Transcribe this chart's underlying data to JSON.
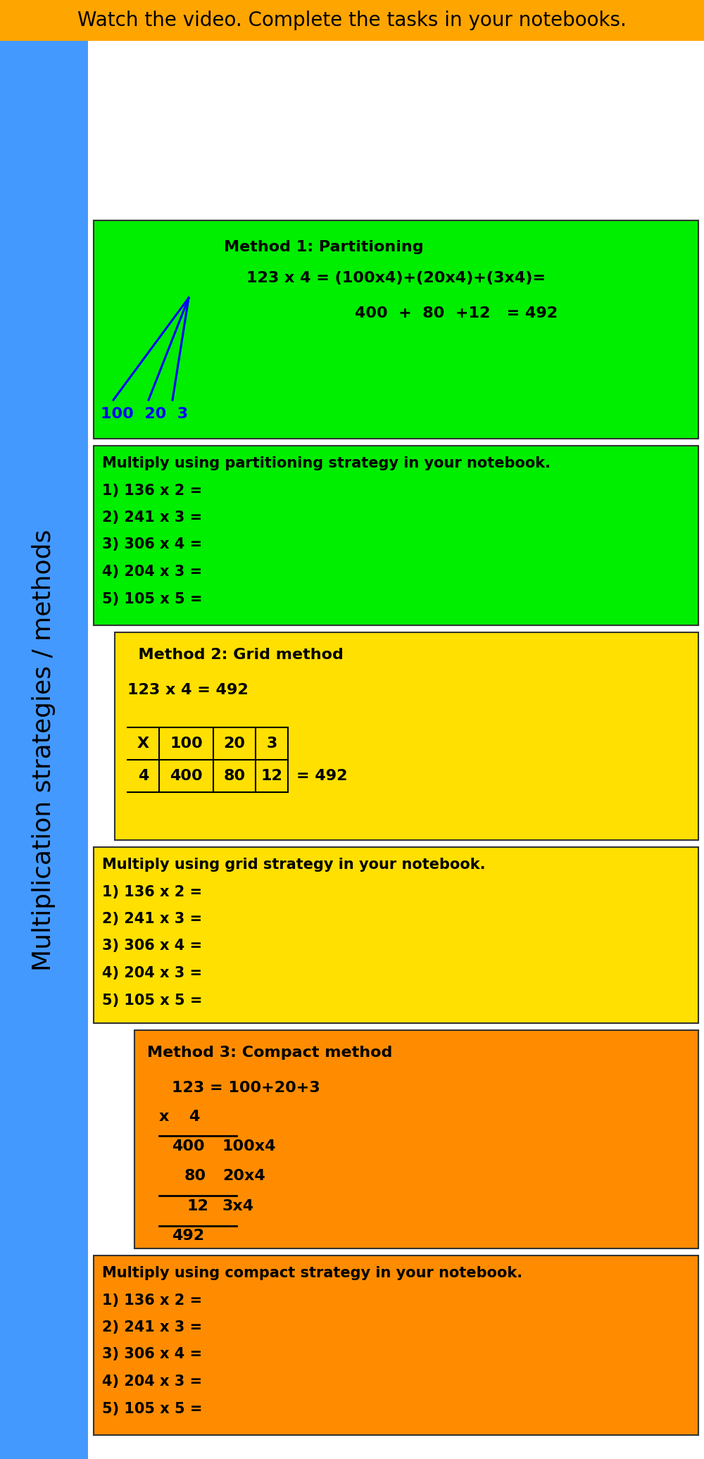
{
  "title_banner": {
    "text": "Watch the video. Complete the tasks in your notebooks.",
    "bg_color": "#FFA500",
    "text_color": "#000000",
    "fontsize": 20
  },
  "sidebar": {
    "text": "Multiplication strategies / methods",
    "bg_color": "#4499FF",
    "text_color": "#000000",
    "fontsize": 26
  },
  "method1_box": {
    "bg_color": "#00EE00",
    "title": "Method 1: Partitioning",
    "line1": "123 x 4 = (100x4)+(20x4)+(3x4)=",
    "line2": "400  +  80  +12   = 492",
    "line3": "100  20  3",
    "fontsize": 16,
    "title_fontsize": 16
  },
  "method1_practice": {
    "bg_color": "#00EE00",
    "lines": [
      "Multiply using partitioning strategy in your notebook.",
      "1) 136 x 2 =",
      "2) 241 x 3 =",
      "3) 306 x 4 =",
      "4) 204 x 3 =",
      "5) 105 x 5 ="
    ],
    "fontsize": 15
  },
  "method2_box": {
    "bg_color": "#FFE000",
    "title": "  Method 2: Grid method",
    "line1": "123 x 4 = 492",
    "fontsize": 16
  },
  "method2_practice": {
    "bg_color": "#FFE000",
    "lines": [
      "Multiply using grid strategy in your notebook.",
      "1) 136 x 2 =",
      "2) 241 x 3 =",
      "3) 306 x 4 =",
      "4) 204 x 3 =",
      "5) 105 x 5 ="
    ],
    "fontsize": 15
  },
  "method3_box": {
    "bg_color": "#FF8C00",
    "title": "Method 3: Compact method",
    "fontsize": 16
  },
  "method3_practice": {
    "bg_color": "#FF8C00",
    "lines": [
      "Multiply using compact strategy in your notebook.",
      "1) 136 x 2 =",
      "2) 241 x 3 =",
      "3) 306 x 4 =",
      "4) 204 x 3 =",
      "5) 105 x 5 ="
    ],
    "fontsize": 15
  },
  "fig_width": 10.0,
  "fig_height": 20.72,
  "dpi": 100
}
